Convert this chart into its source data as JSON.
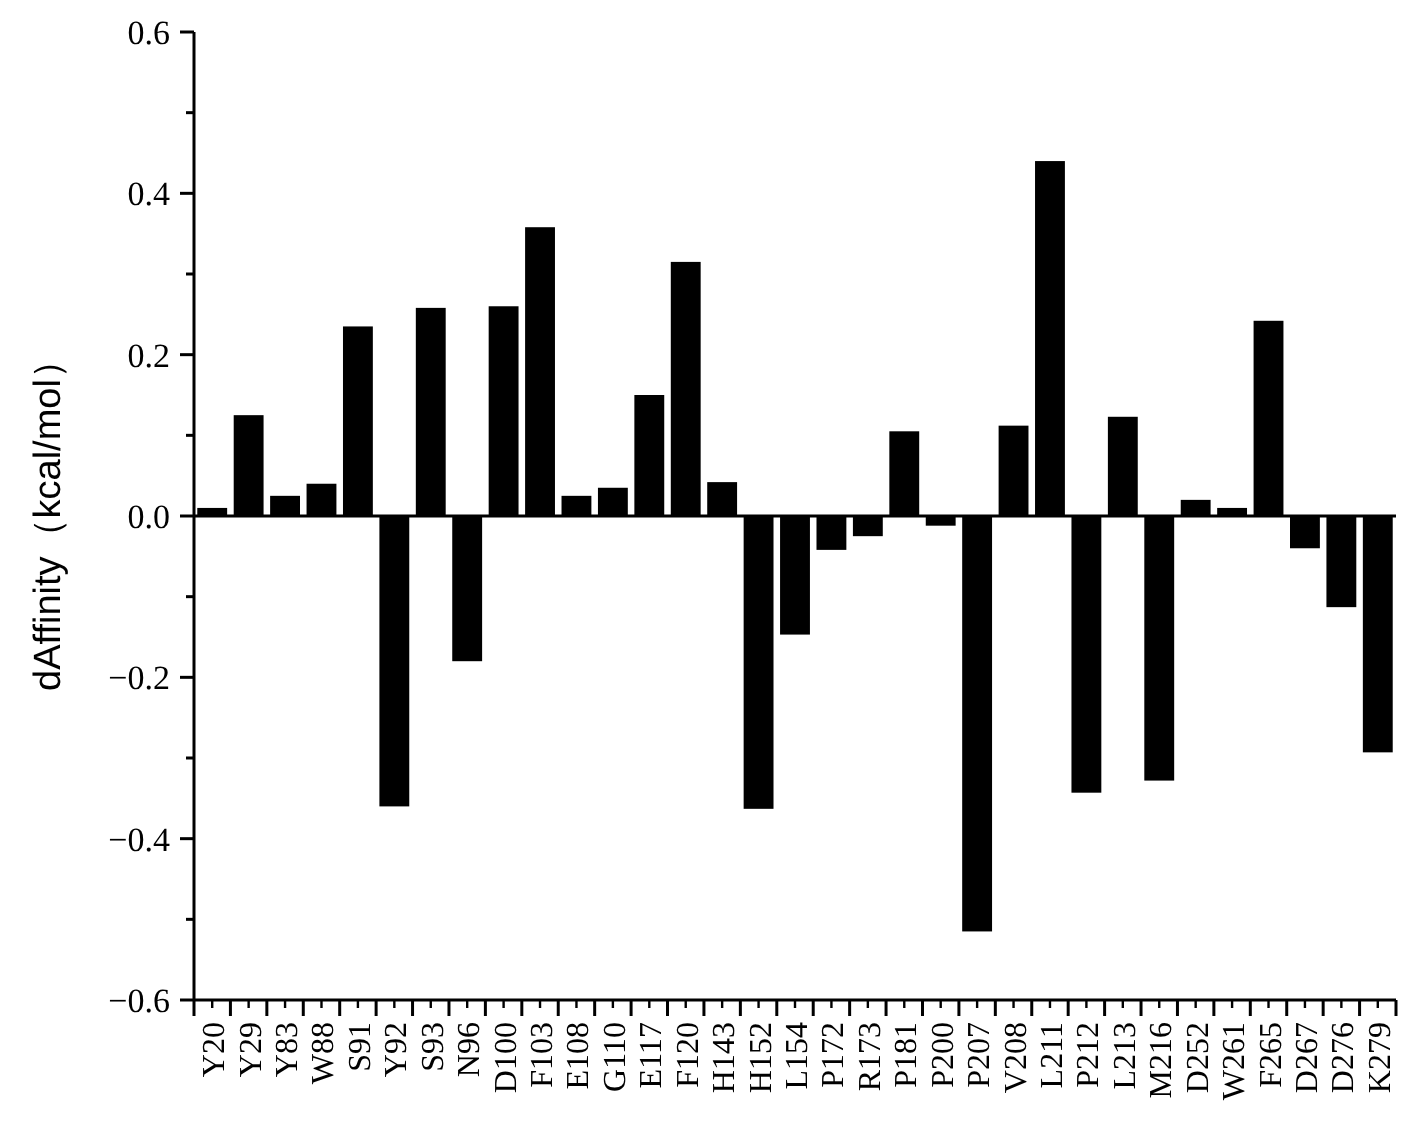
{
  "chart_data": {
    "type": "bar",
    "ylabel": "dAffinity（kcal/mol）",
    "categories": [
      "Y20",
      "Y29",
      "Y83",
      "W88",
      "S91",
      "Y92",
      "S93",
      "N96",
      "D100",
      "F103",
      "E108",
      "G110",
      "E117",
      "F120",
      "H143",
      "H152",
      "L154",
      "P172",
      "R173",
      "P181",
      "P200",
      "P207",
      "V208",
      "L211",
      "P212",
      "L213",
      "M216",
      "D252",
      "W261",
      "F265",
      "D267",
      "D276",
      "K279"
    ],
    "values": [
      0.01,
      0.125,
      0.025,
      0.04,
      0.235,
      -0.36,
      0.258,
      -0.18,
      0.26,
      0.358,
      0.025,
      0.035,
      0.15,
      0.315,
      0.042,
      -0.363,
      -0.147,
      -0.042,
      -0.025,
      0.105,
      -0.012,
      -0.515,
      0.112,
      0.44,
      -0.343,
      0.123,
      -0.328,
      0.02,
      0.01,
      0.242,
      -0.04,
      -0.113,
      -0.293
    ],
    "color": "#000000",
    "ylim": [
      -0.6,
      0.6
    ],
    "yticks": [
      {
        "value": -0.6,
        "label": "−0.6"
      },
      {
        "value": -0.5,
        "label": null
      },
      {
        "value": -0.4,
        "label": "−0.4"
      },
      {
        "value": -0.3,
        "label": null
      },
      {
        "value": -0.2,
        "label": "−0.2"
      },
      {
        "value": -0.1,
        "label": null
      },
      {
        "value": 0,
        "label": "0.0"
      },
      {
        "value": 0.1,
        "label": null
      },
      {
        "value": 0.2,
        "label": "0.2"
      },
      {
        "value": 0.3,
        "label": null
      },
      {
        "value": 0.4,
        "label": "0.4"
      },
      {
        "value": 0.5,
        "label": null
      },
      {
        "value": 0.6,
        "label": "0.6"
      }
    ],
    "ref_lines": [
      {
        "axis": "y",
        "value": 0,
        "color": "#000000"
      }
    ],
    "grid": false
  }
}
